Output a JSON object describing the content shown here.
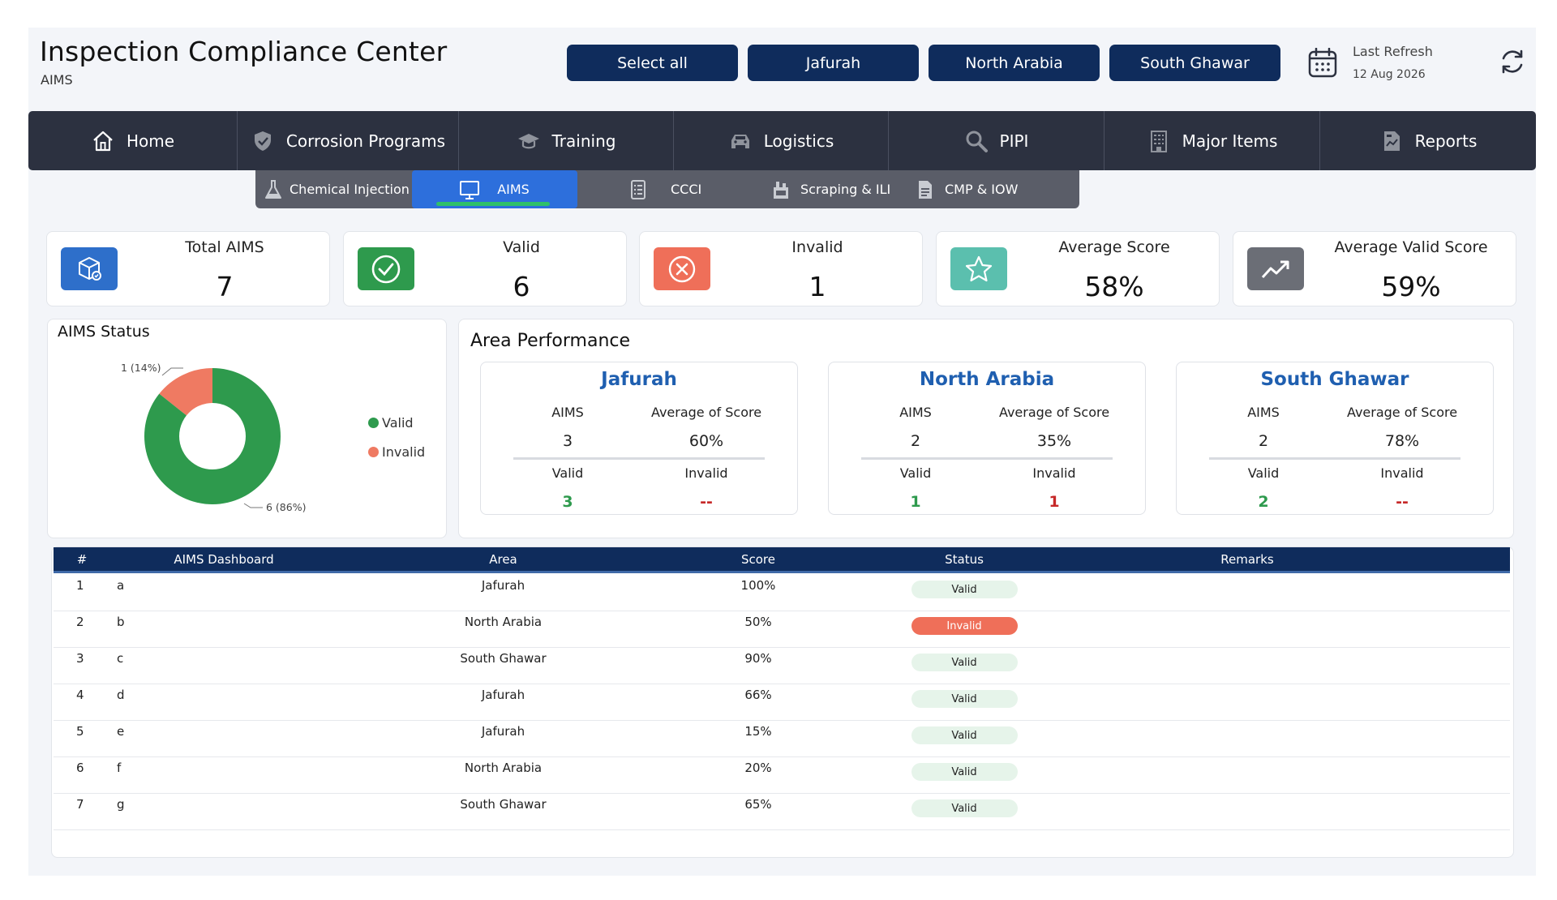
{
  "header": {
    "title": "Inspection Compliance Center",
    "subtitle": "AIMS",
    "filters": [
      "Select all",
      "Jafurah",
      "North Arabia",
      "South Ghawar"
    ],
    "refresh_label": "Last Refresh",
    "refresh_date": "12 Aug 2026",
    "icons": {
      "calendar": "calendar-icon",
      "refresh": "refresh-icon"
    }
  },
  "nav": {
    "items": [
      {
        "label": "Home",
        "icon": "home-icon"
      },
      {
        "label": "Corrosion Programs",
        "icon": "shield-icon"
      },
      {
        "label": "Training",
        "icon": "graduation-cap-icon"
      },
      {
        "label": "Logistics",
        "icon": "car-icon"
      },
      {
        "label": "PIPI",
        "icon": "magnifier-icon"
      },
      {
        "label": "Major Items",
        "icon": "building-icon"
      },
      {
        "label": "Reports",
        "icon": "report-icon"
      }
    ],
    "active": "Corrosion Programs"
  },
  "subnav": {
    "items": [
      {
        "label": "Chemical Injection",
        "icon": "flask-icon"
      },
      {
        "label": "AIMS",
        "icon": "monitor-icon"
      },
      {
        "label": "CCCI",
        "icon": "checklist-icon"
      },
      {
        "label": "Scraping & ILI",
        "icon": "pipeline-icon"
      },
      {
        "label": "CMP & IOW",
        "icon": "document-icon"
      }
    ],
    "active": "AIMS"
  },
  "kpis": [
    {
      "label": "Total AIMS",
      "value": "7",
      "icon": "cube-icon",
      "color": "#2e6fca"
    },
    {
      "label": "Valid",
      "value": "6",
      "icon": "check-circle-icon",
      "color": "#2e9a4d"
    },
    {
      "label": "Invalid",
      "value": "1",
      "icon": "x-circle-icon",
      "color": "#ef6f59"
    },
    {
      "label": "Average Score",
      "value": "58%",
      "icon": "star-icon",
      "color": "#5bbfae"
    },
    {
      "label": "Average Valid Score",
      "value": "59%",
      "icon": "trend-up-icon",
      "color": "#6b6e76"
    }
  ],
  "status_panel": {
    "title": "AIMS Status",
    "legend": [
      "Valid",
      "Invalid"
    ],
    "label_invalid": "1 (14%)",
    "label_valid": "6 (86%)",
    "colors": {
      "valid": "#2e9a4d",
      "invalid": "#ef7a62"
    }
  },
  "chart_data": {
    "type": "pie",
    "title": "AIMS Status",
    "categories": [
      "Valid",
      "Invalid"
    ],
    "values": [
      6,
      1
    ],
    "percentages": [
      86,
      14
    ],
    "legend_position": "right"
  },
  "area_panel": {
    "title": "Area Performance",
    "col_aims": "AIMS",
    "col_avg": "Average of Score",
    "col_valid": "Valid",
    "col_invalid": "Invalid",
    "areas": [
      {
        "name": "Jafurah",
        "aims": "3",
        "avg": "60%",
        "valid": "3",
        "invalid": "--"
      },
      {
        "name": "North Arabia",
        "aims": "2",
        "avg": "35%",
        "valid": "1",
        "invalid": "1"
      },
      {
        "name": "South Ghawar",
        "aims": "2",
        "avg": "78%",
        "valid": "2",
        "invalid": "--"
      }
    ]
  },
  "table": {
    "columns": [
      "#",
      "AIMS Dashboard",
      "Area",
      "Score",
      "Status",
      "Remarks"
    ],
    "rows": [
      {
        "num": "1",
        "name": "a",
        "area": "Jafurah",
        "score": "100%",
        "status": "Valid",
        "remarks": ""
      },
      {
        "num": "2",
        "name": "b",
        "area": "North Arabia",
        "score": "50%",
        "status": "Invalid",
        "remarks": ""
      },
      {
        "num": "3",
        "name": "c",
        "area": "South Ghawar",
        "score": "90%",
        "status": "Valid",
        "remarks": ""
      },
      {
        "num": "4",
        "name": "d",
        "area": "Jafurah",
        "score": "66%",
        "status": "Valid",
        "remarks": ""
      },
      {
        "num": "5",
        "name": "e",
        "area": "Jafurah",
        "score": "15%",
        "status": "Valid",
        "remarks": ""
      },
      {
        "num": "6",
        "name": "f",
        "area": "North Arabia",
        "score": "20%",
        "status": "Valid",
        "remarks": ""
      },
      {
        "num": "7",
        "name": "g",
        "area": "South Ghawar",
        "score": "65%",
        "status": "Valid",
        "remarks": ""
      }
    ]
  }
}
